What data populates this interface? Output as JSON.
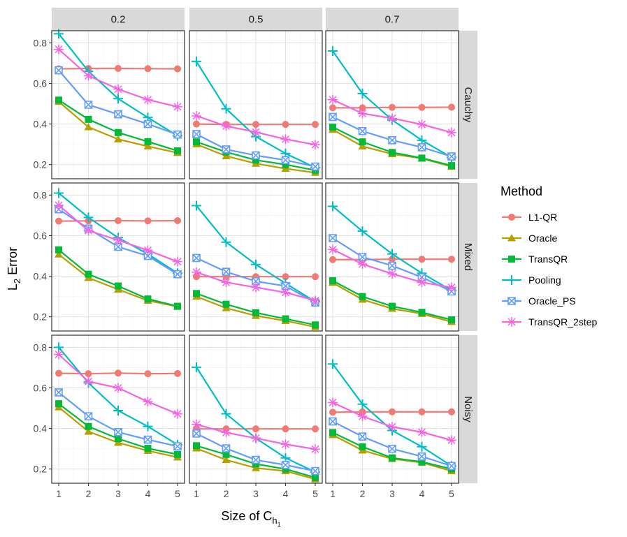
{
  "chart_data": {
    "type": "line",
    "ylabel_main": "L",
    "ylabel_sub": "2",
    "ylabel_rest": " Error",
    "xlabel_main": "Size of C",
    "xlabel_sub": "h",
    "xlabel_subsub": "1",
    "x": [
      1,
      2,
      3,
      4,
      5
    ],
    "x_ticks": [
      "1",
      "2",
      "3",
      "4",
      "5"
    ],
    "y_ticks": [
      "0.2",
      "0.4",
      "0.6",
      "0.8"
    ],
    "y_tick_values": [
      0.2,
      0.4,
      0.6,
      0.8
    ],
    "ylim": [
      0.13,
      0.86
    ],
    "columns": [
      "0.2",
      "0.5",
      "0.7"
    ],
    "rows": [
      "Cauchy",
      "Mixed",
      "Noisy"
    ],
    "legend": {
      "title": "Method",
      "placement": "right",
      "entries": [
        "L1-QR",
        "Oracle",
        "TransQR",
        "Pooling",
        "Oracle_PS",
        "TransQR_2step"
      ]
    },
    "colors": {
      "L1-QR": "#F07B72",
      "Oracle": "#B79F00",
      "TransQR": "#00BA38",
      "Pooling": "#00BFC4",
      "Oracle_PS": "#619CFF",
      "TransQR_2step": "#F564E3"
    },
    "panels": [
      {
        "row": "Cauchy",
        "col": "0.2",
        "series": [
          {
            "name": "L1-QR",
            "values": [
              0.672,
              0.674,
              0.674,
              0.673,
              0.672
            ]
          },
          {
            "name": "Oracle",
            "values": [
              0.51,
              0.385,
              0.325,
              0.29,
              0.258
            ]
          },
          {
            "name": "TransQR",
            "values": [
              0.518,
              0.423,
              0.358,
              0.313,
              0.268
            ]
          },
          {
            "name": "Pooling",
            "values": [
              0.845,
              0.66,
              0.525,
              0.432,
              0.342
            ]
          },
          {
            "name": "Oracle_PS",
            "values": [
              0.665,
              0.495,
              0.448,
              0.4,
              0.348
            ]
          },
          {
            "name": "TransQR_2step",
            "values": [
              0.768,
              0.638,
              0.572,
              0.52,
              0.485
            ]
          }
        ]
      },
      {
        "row": "Cauchy",
        "col": "0.5",
        "series": [
          {
            "name": "L1-QR",
            "values": [
              0.4,
              0.398,
              0.398,
              0.398,
              0.398
            ]
          },
          {
            "name": "Oracle",
            "values": [
              0.3,
              0.242,
              0.205,
              0.18,
              0.16
            ]
          },
          {
            "name": "TransQR",
            "values": [
              0.312,
              0.262,
              0.222,
              0.2,
              0.172
            ]
          },
          {
            "name": "Pooling",
            "values": [
              0.708,
              0.475,
              0.338,
              0.255,
              0.185
            ]
          },
          {
            "name": "Oracle_PS",
            "values": [
              0.35,
              0.275,
              0.245,
              0.222,
              0.19
            ]
          },
          {
            "name": "TransQR_2step",
            "values": [
              0.44,
              0.39,
              0.36,
              0.325,
              0.298
            ]
          }
        ]
      },
      {
        "row": "Cauchy",
        "col": "0.7",
        "series": [
          {
            "name": "L1-QR",
            "values": [
              0.48,
              0.48,
              0.482,
              0.482,
              0.483
            ]
          },
          {
            "name": "Oracle",
            "values": [
              0.372,
              0.29,
              0.252,
              0.23,
              0.19
            ]
          },
          {
            "name": "TransQR",
            "values": [
              0.385,
              0.312,
              0.26,
              0.232,
              0.195
            ]
          },
          {
            "name": "Pooling",
            "values": [
              0.76,
              0.55,
              0.42,
              0.32,
              0.235
            ]
          },
          {
            "name": "Oracle_PS",
            "values": [
              0.435,
              0.365,
              0.32,
              0.285,
              0.24
            ]
          },
          {
            "name": "TransQR_2step",
            "values": [
              0.52,
              0.452,
              0.428,
              0.398,
              0.358
            ]
          }
        ]
      },
      {
        "row": "Mixed",
        "col": "0.2",
        "series": [
          {
            "name": "L1-QR",
            "values": [
              0.672,
              0.673,
              0.674,
              0.673,
              0.674
            ]
          },
          {
            "name": "Oracle",
            "values": [
              0.508,
              0.392,
              0.335,
              0.28,
              0.25
            ]
          },
          {
            "name": "TransQR",
            "values": [
              0.53,
              0.41,
              0.352,
              0.288,
              0.252
            ]
          },
          {
            "name": "Pooling",
            "values": [
              0.81,
              0.69,
              0.59,
              0.51,
              0.415
            ]
          },
          {
            "name": "Oracle_PS",
            "values": [
              0.73,
              0.635,
              0.545,
              0.5,
              0.41
            ]
          },
          {
            "name": "TransQR_2step",
            "values": [
              0.75,
              0.625,
              0.578,
              0.528,
              0.472
            ]
          }
        ]
      },
      {
        "row": "Mixed",
        "col": "0.5",
        "series": [
          {
            "name": "L1-QR",
            "values": [
              0.398,
              0.398,
              0.398,
              0.398,
              0.398
            ]
          },
          {
            "name": "Oracle",
            "values": [
              0.3,
              0.243,
              0.205,
              0.18,
              0.15
            ]
          },
          {
            "name": "TransQR",
            "values": [
              0.315,
              0.262,
              0.22,
              0.19,
              0.16
            ]
          },
          {
            "name": "Pooling",
            "values": [
              0.748,
              0.568,
              0.458,
              0.365,
              0.275
            ]
          },
          {
            "name": "Oracle_PS",
            "values": [
              0.49,
              0.422,
              0.375,
              0.352,
              0.27
            ]
          },
          {
            "name": "TransQR_2step",
            "values": [
              0.42,
              0.37,
              0.345,
              0.32,
              0.28
            ]
          }
        ]
      },
      {
        "row": "Mixed",
        "col": "0.7",
        "series": [
          {
            "name": "L1-QR",
            "values": [
              0.482,
              0.482,
              0.484,
              0.484,
              0.484
            ]
          },
          {
            "name": "Oracle",
            "values": [
              0.368,
              0.285,
              0.24,
              0.215,
              0.175
            ]
          },
          {
            "name": "TransQR",
            "values": [
              0.378,
              0.3,
              0.252,
              0.222,
              0.185
            ]
          },
          {
            "name": "Pooling",
            "values": [
              0.745,
              0.622,
              0.51,
              0.415,
              0.33
            ]
          },
          {
            "name": "Oracle_PS",
            "values": [
              0.588,
              0.495,
              0.452,
              0.395,
              0.325
            ]
          },
          {
            "name": "TransQR_2step",
            "values": [
              0.532,
              0.46,
              0.412,
              0.37,
              0.345
            ]
          }
        ]
      },
      {
        "row": "Noisy",
        "col": "0.2",
        "series": [
          {
            "name": "L1-QR",
            "values": [
              0.672,
              0.67,
              0.673,
              0.67,
              0.671
            ]
          },
          {
            "name": "Oracle",
            "values": [
              0.505,
              0.385,
              0.33,
              0.29,
              0.258
            ]
          },
          {
            "name": "TransQR",
            "values": [
              0.522,
              0.41,
              0.35,
              0.302,
              0.272
            ]
          },
          {
            "name": "Pooling",
            "values": [
              0.8,
              0.625,
              0.488,
              0.41,
              0.32
            ]
          },
          {
            "name": "Oracle_PS",
            "values": [
              0.578,
              0.46,
              0.382,
              0.345,
              0.312
            ]
          },
          {
            "name": "TransQR_2step",
            "values": [
              0.765,
              0.632,
              0.6,
              0.532,
              0.472
            ]
          }
        ]
      },
      {
        "row": "Noisy",
        "col": "0.5",
        "series": [
          {
            "name": "L1-QR",
            "values": [
              0.398,
              0.398,
              0.398,
              0.398,
              0.398
            ]
          },
          {
            "name": "Oracle",
            "values": [
              0.302,
              0.245,
              0.205,
              0.19,
              0.15
            ]
          },
          {
            "name": "TransQR",
            "values": [
              0.315,
              0.272,
              0.225,
              0.2,
              0.158
            ]
          },
          {
            "name": "Pooling",
            "values": [
              0.702,
              0.472,
              0.352,
              0.255,
              0.185
            ]
          },
          {
            "name": "Oracle_PS",
            "values": [
              0.375,
              0.302,
              0.245,
              0.22,
              0.19
            ]
          },
          {
            "name": "TransQR_2step",
            "values": [
              0.42,
              0.38,
              0.352,
              0.322,
              0.298
            ]
          }
        ]
      },
      {
        "row": "Noisy",
        "col": "0.7",
        "series": [
          {
            "name": "L1-QR",
            "values": [
              0.48,
              0.482,
              0.482,
              0.482,
              0.482
            ]
          },
          {
            "name": "Oracle",
            "values": [
              0.368,
              0.292,
              0.25,
              0.232,
              0.19
            ]
          },
          {
            "name": "TransQR",
            "values": [
              0.38,
              0.31,
              0.255,
              0.235,
              0.2
            ]
          },
          {
            "name": "Pooling",
            "values": [
              0.718,
              0.52,
              0.39,
              0.31,
              0.215
            ]
          },
          {
            "name": "Oracle_PS",
            "values": [
              0.435,
              0.36,
              0.3,
              0.262,
              0.215
            ]
          },
          {
            "name": "TransQR_2step",
            "values": [
              0.528,
              0.46,
              0.408,
              0.382,
              0.342
            ]
          }
        ]
      }
    ]
  }
}
